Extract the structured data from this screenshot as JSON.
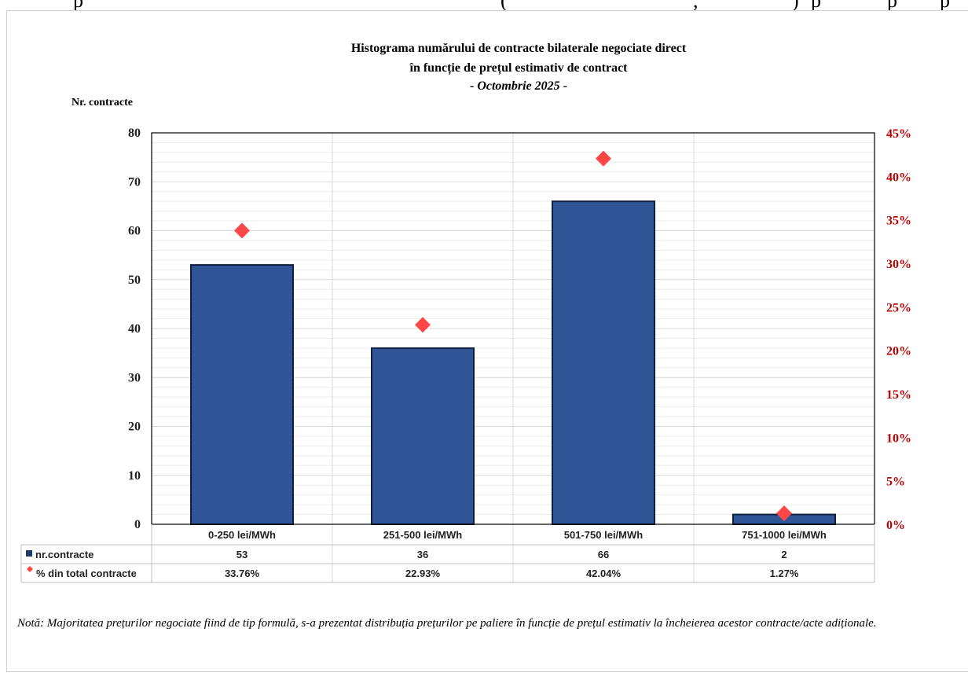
{
  "top_fragment": {
    "left": "p",
    "middle": "(",
    "right1": ",",
    "right2": ")",
    "right3": "p",
    "right4": "p",
    "right5": "p"
  },
  "chart_data": {
    "type": "bar",
    "title_line1": "Histograma numărului de contracte bilaterale negociate direct",
    "title_line2": "în funcție de prețul estimativ de contract",
    "title_line3_dash1": "-",
    "title_line3_italic": "Octombrie 2025",
    "title_line3_dash2": "-",
    "ylabel": "Nr. contracte",
    "categories": [
      "0-250 lei/MWh",
      "251-500 lei/MWh",
      "501-750 lei/MWh",
      "751-1000 lei/MWh"
    ],
    "ylim": [
      0,
      80
    ],
    "y_ticks": [
      "0",
      "10",
      "20",
      "30",
      "40",
      "50",
      "60",
      "70",
      "80"
    ],
    "y2lim": [
      0,
      45
    ],
    "y2_ticks": [
      "0%",
      "5%",
      "10%",
      "15%",
      "20%",
      "25%",
      "30%",
      "35%",
      "40%",
      "45%"
    ],
    "series": [
      {
        "name": "nr.contracte",
        "type": "bar",
        "values": [
          53,
          36,
          66,
          2
        ],
        "labels": [
          "53",
          "36",
          "66",
          "2"
        ],
        "color": "#2f5597"
      },
      {
        "name": "% din total contracte",
        "type": "scatter",
        "axis": "secondary",
        "values": [
          33.76,
          22.93,
          42.04,
          1.27
        ],
        "labels": [
          "33.76%",
          "22.93%",
          "42.04%",
          "1.27%"
        ],
        "color": "#ff4747"
      }
    ],
    "grid": true,
    "legend": "data-table"
  },
  "note": "Notă: Majoritatea prețurilor negociate fiind de tip formulă, s-a prezentat distribuția prețurilor pe paliere în funcție de prețul estimativ la încheierea acestor contracte/acte adiționale."
}
